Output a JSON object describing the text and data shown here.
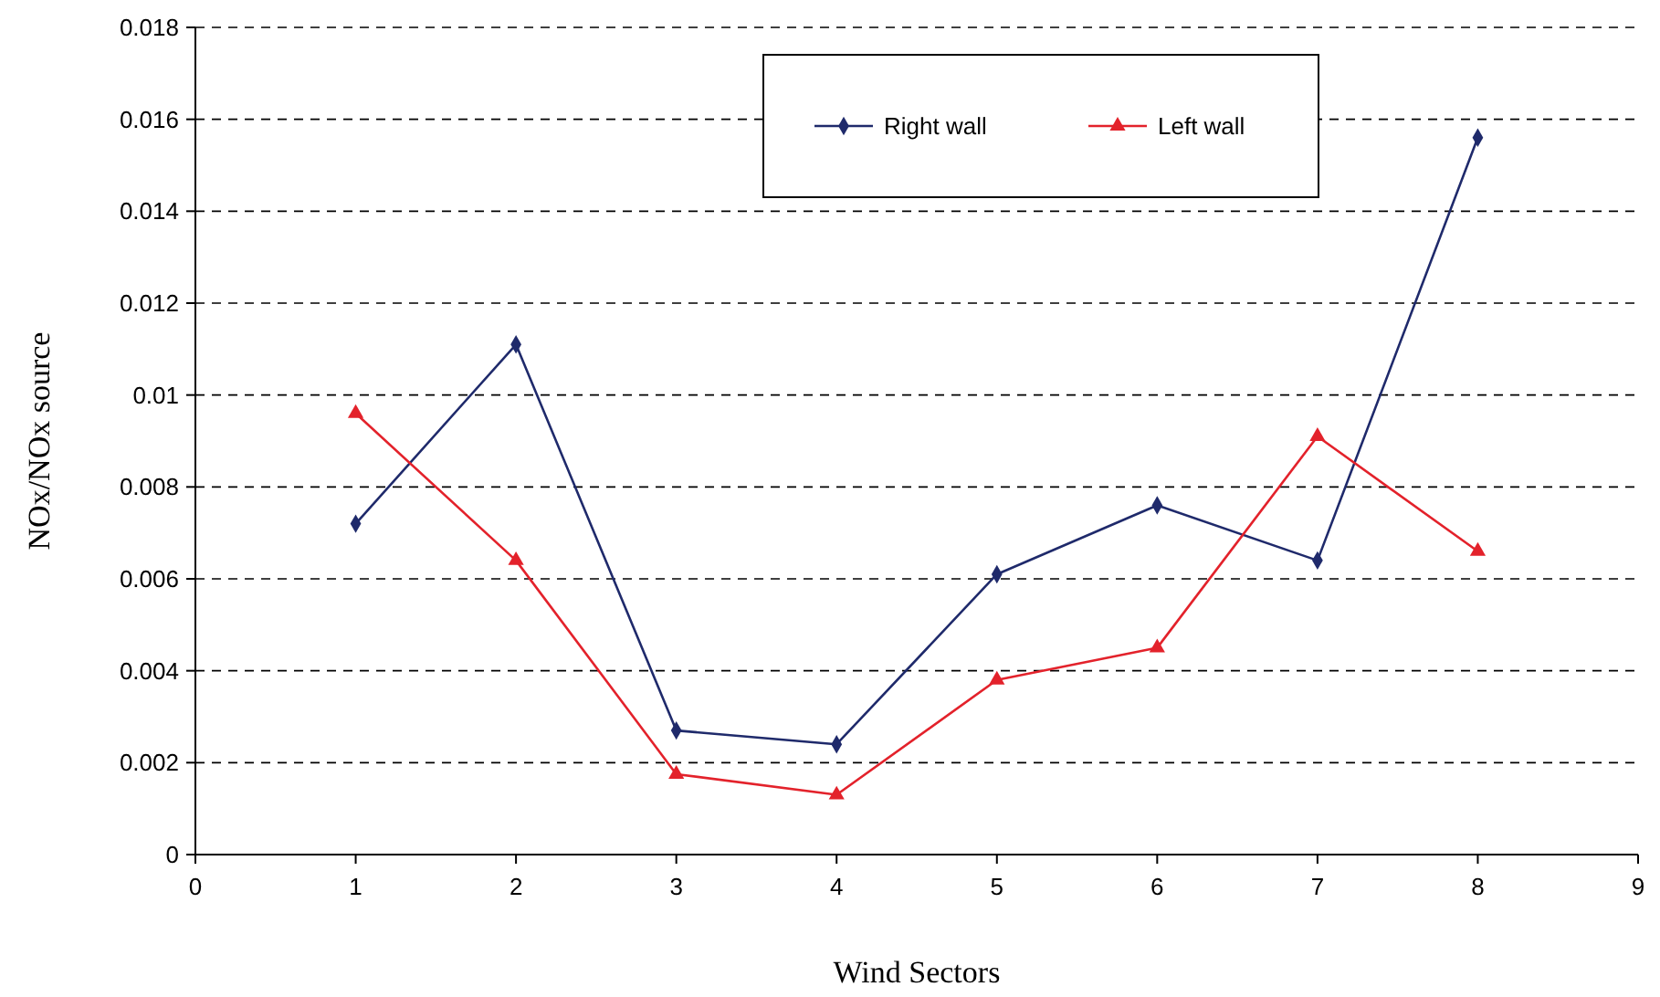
{
  "chart_data": {
    "type": "line",
    "xlabel": "Wind Sectors",
    "ylabel": "NOx/NOx source",
    "xlim": [
      0,
      9
    ],
    "xticks": [
      0,
      1,
      2,
      3,
      4,
      5,
      6,
      7,
      8,
      9
    ],
    "ylim": [
      0,
      0.018
    ],
    "yticks": [
      0,
      0.002,
      0.004,
      0.006,
      0.008,
      0.01,
      0.012,
      0.014,
      0.016,
      0.018
    ],
    "grid": "y",
    "legend": "top",
    "line_style": "solid",
    "series": [
      {
        "name": "Right wall",
        "color": "#1f2a6b",
        "marker": "diamond",
        "x": [
          1,
          2,
          3,
          4,
          5,
          6,
          7,
          8
        ],
        "values": [
          0.0072,
          0.0111,
          0.0027,
          0.0024,
          0.0061,
          0.0076,
          0.0064,
          0.0156
        ]
      },
      {
        "name": "Left wall",
        "color": "#e3222b",
        "marker": "triangle",
        "x": [
          1,
          2,
          3,
          4,
          5,
          6,
          7,
          8
        ],
        "values": [
          0.0096,
          0.0064,
          0.00175,
          0.0013,
          0.0038,
          0.0045,
          0.0091,
          0.0066
        ]
      }
    ]
  }
}
